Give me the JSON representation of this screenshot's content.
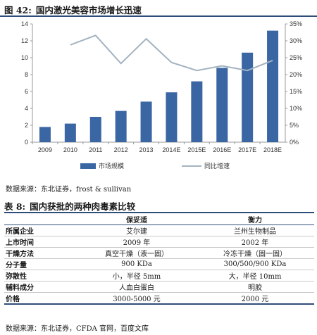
{
  "figure": {
    "number": "图 42:",
    "title": "国内激光美容市场增长迅速",
    "source": "数据来源：东北证券，frost & sullivan"
  },
  "chart_data": {
    "type": "bar",
    "categories": [
      "2009",
      "2010",
      "2011",
      "2012",
      "2013",
      "2014E",
      "2015E",
      "2016E",
      "2017E",
      "2018E"
    ],
    "series": [
      {
        "name": "市场规模",
        "type": "bar",
        "axis": "left",
        "color": "#3a66a3",
        "values": [
          1.8,
          2.2,
          3.0,
          3.7,
          4.8,
          5.9,
          7.2,
          8.8,
          10.6,
          13.2
        ]
      },
      {
        "name": "同比增速",
        "type": "line",
        "axis": "right",
        "color": "#a3b3c1",
        "values": [
          null,
          28.8,
          31.6,
          23.3,
          30.6,
          23.6,
          21.2,
          22.6,
          21.2,
          24.2
        ]
      }
    ],
    "y_left": {
      "min": 0,
      "max": 14,
      "ticks": [
        "0",
        "2",
        "4",
        "6",
        "8",
        "10",
        "12",
        "14"
      ]
    },
    "y_right": {
      "min": 0,
      "max": 35,
      "ticks": [
        "0%",
        "5%",
        "10%",
        "15%",
        "20%",
        "25%",
        "30%",
        "35%"
      ]
    },
    "grid": false,
    "legend_position": "bottom"
  },
  "table": {
    "number": "表 8:",
    "title": "国内获批的两种肉毒素比较",
    "headers": [
      "",
      "保妥适",
      "衡力"
    ],
    "rows": [
      [
        "所属企业",
        "艾尔建",
        "兰州生物制品"
      ],
      [
        "上市时间",
        "2009 年",
        "2002 年"
      ],
      [
        "干燥方法",
        "真空干燥（液一固）",
        "冷冻干燥（固一固）"
      ],
      [
        "分子量",
        "900 KDa",
        "300/500/900 KDa"
      ],
      [
        "弥散性",
        "小，半径 5mm",
        "大，半径 10mm"
      ],
      [
        "辅料成分",
        "人血白蛋白",
        "明胶"
      ],
      [
        "价格",
        "3000-5000 元",
        "2000 元"
      ]
    ],
    "source": "数据来源：东北证券，CFDA 官网，百度文库"
  }
}
